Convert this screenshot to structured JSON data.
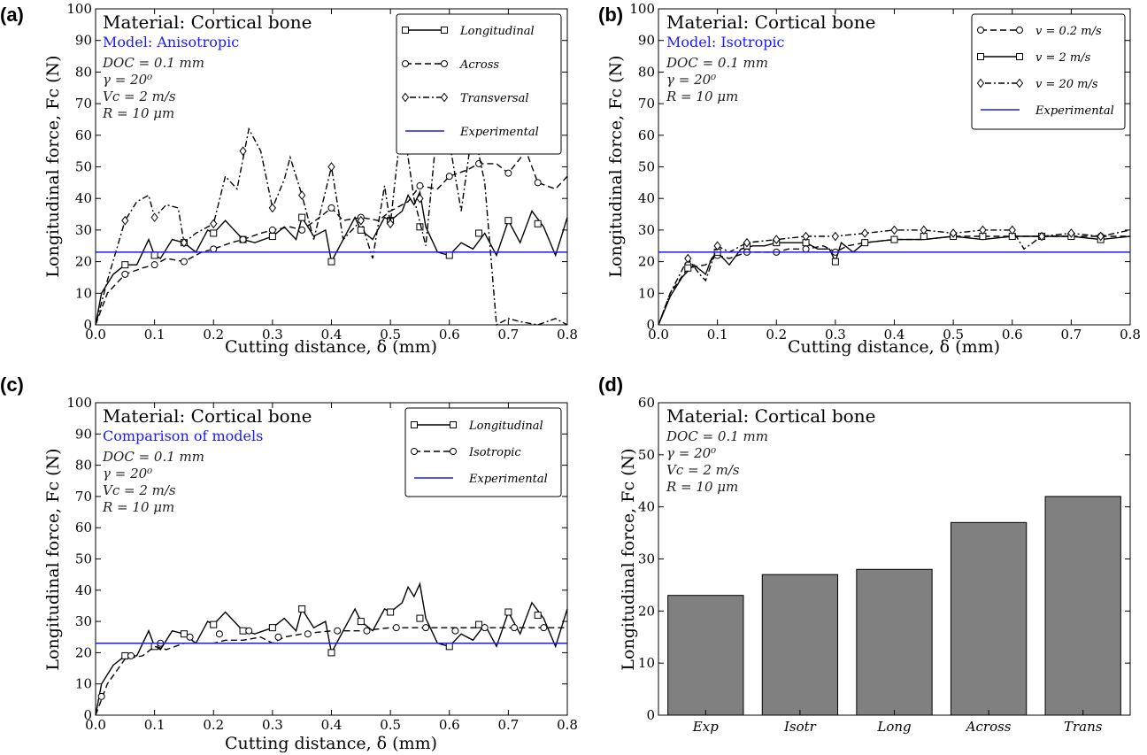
{
  "figure": {
    "panels": [
      {
        "label": "(a)",
        "heading": "Material: Cortical bone",
        "model": "Model: Anisotropic",
        "params": [
          "DOC = 0.1 mm",
          "γ = 20⁰",
          "Vc = 2 m/s",
          "R = 10 μm"
        ]
      },
      {
        "label": "(b)",
        "heading": "Material: Cortical bone",
        "model": "Model: Isotropic",
        "params": [
          "DOC = 0.1 mm",
          "γ = 20⁰",
          "R = 10 μm"
        ]
      },
      {
        "label": "(c)",
        "heading": "Material: Cortical bone",
        "model": "Comparison of models",
        "params": [
          "DOC = 0.1 mm",
          "γ = 20⁰",
          "Vc = 2 m/s",
          "R = 10 μm"
        ]
      },
      {
        "label": "(d)",
        "heading": "Material: Cortical bone",
        "model": "",
        "params": [
          "DOC = 0.1 mm",
          "γ = 20⁰",
          "Vc = 2 m/s",
          "R = 10 μm"
        ]
      }
    ]
  },
  "chart_data": [
    {
      "type": "line",
      "xlabel": "Cutting distance, δ (mm)",
      "ylabel": "Longitudinal force, Fc (N)",
      "xlim": [
        0,
        0.8
      ],
      "ylim": [
        0,
        100
      ],
      "xticks": [
        "0.0",
        "0.1",
        "0.2",
        "0.3",
        "0.4",
        "0.5",
        "0.6",
        "0.7",
        "0.8"
      ],
      "yticks": [
        "0",
        "10",
        "20",
        "30",
        "40",
        "50",
        "60",
        "70",
        "80",
        "90",
        "100"
      ],
      "legend_position": "top-right",
      "series": [
        {
          "name": "Longitudinal",
          "style": "solid",
          "marker": "square",
          "x": [
            0,
            0.01,
            0.03,
            0.05,
            0.07,
            0.09,
            0.1,
            0.11,
            0.13,
            0.15,
            0.17,
            0.19,
            0.2,
            0.22,
            0.25,
            0.27,
            0.3,
            0.32,
            0.34,
            0.35,
            0.37,
            0.39,
            0.4,
            0.42,
            0.44,
            0.45,
            0.47,
            0.49,
            0.5,
            0.52,
            0.53,
            0.54,
            0.55,
            0.56,
            0.58,
            0.6,
            0.62,
            0.64,
            0.66,
            0.68,
            0.7,
            0.72,
            0.74,
            0.76,
            0.78,
            0.8
          ],
          "y": [
            0,
            10,
            16,
            19,
            19,
            27,
            22,
            21,
            27,
            26,
            23,
            30,
            29,
            33,
            27,
            26,
            28,
            31,
            27,
            34,
            28,
            30,
            20,
            27,
            34,
            30,
            27,
            34,
            33,
            36,
            41,
            38,
            42,
            31,
            23,
            22,
            26,
            24,
            29,
            22,
            33,
            26,
            36,
            31,
            22,
            34
          ],
          "markers_x": [
            0.05,
            0.1,
            0.15,
            0.2,
            0.25,
            0.3,
            0.35,
            0.4,
            0.45,
            0.5,
            0.55,
            0.6,
            0.65,
            0.7,
            0.75
          ],
          "markers_y": [
            19,
            22,
            26,
            29,
            27,
            28,
            34,
            20,
            30,
            33,
            31,
            22,
            29,
            33,
            32
          ]
        },
        {
          "name": "Across",
          "style": "dashed",
          "marker": "circle",
          "x": [
            0,
            0.02,
            0.05,
            0.08,
            0.1,
            0.12,
            0.15,
            0.18,
            0.2,
            0.23,
            0.25,
            0.28,
            0.3,
            0.33,
            0.35,
            0.38,
            0.4,
            0.42,
            0.45,
            0.48,
            0.5,
            0.53,
            0.55,
            0.58,
            0.6,
            0.63,
            0.65,
            0.68,
            0.7,
            0.73,
            0.75,
            0.78,
            0.8
          ],
          "y": [
            0,
            10,
            16,
            18,
            19,
            21,
            20,
            23,
            24,
            26,
            27,
            29,
            30,
            31,
            30,
            34,
            37,
            33,
            34,
            33,
            36,
            39,
            44,
            43,
            47,
            49,
            51,
            51,
            48,
            55,
            45,
            43,
            47
          ],
          "markers_x": [
            0.05,
            0.1,
            0.15,
            0.2,
            0.25,
            0.3,
            0.35,
            0.4,
            0.45,
            0.5,
            0.55,
            0.6,
            0.65,
            0.7,
            0.75
          ],
          "markers_y": [
            16,
            19,
            20,
            24,
            27,
            30,
            30,
            37,
            34,
            33,
            44,
            47,
            51,
            48,
            45
          ]
        },
        {
          "name": "Transversal",
          "style": "dashdot",
          "marker": "diamond",
          "x": [
            0,
            0.02,
            0.05,
            0.07,
            0.09,
            0.1,
            0.12,
            0.14,
            0.15,
            0.17,
            0.2,
            0.22,
            0.24,
            0.26,
            0.28,
            0.3,
            0.32,
            0.33,
            0.35,
            0.37,
            0.4,
            0.42,
            0.45,
            0.47,
            0.49,
            0.5,
            0.52,
            0.54,
            0.56,
            0.58,
            0.6,
            0.62,
            0.64,
            0.66,
            0.68,
            0.7,
            0.72,
            0.75,
            0.78,
            0.8
          ],
          "y": [
            0,
            14,
            33,
            39,
            41,
            34,
            38,
            37,
            26,
            29,
            32,
            47,
            43,
            62,
            55,
            37,
            46,
            53,
            41,
            27,
            50,
            27,
            33,
            21,
            44,
            32,
            66,
            40,
            25,
            64,
            58,
            36,
            63,
            45,
            0,
            2,
            1,
            0,
            2,
            0
          ],
          "markers_x": [
            0.05,
            0.1,
            0.15,
            0.2,
            0.25,
            0.3,
            0.35,
            0.4,
            0.45,
            0.5,
            0.55,
            0.6
          ],
          "markers_y": [
            33,
            34,
            26,
            32,
            55,
            37,
            41,
            50,
            33,
            32,
            40,
            58
          ]
        },
        {
          "name": "Experimental",
          "style": "solid",
          "marker": "none",
          "color": "#1a1aff",
          "x": [
            0,
            0.8
          ],
          "y": [
            23,
            23
          ]
        }
      ]
    },
    {
      "type": "line",
      "xlabel": "Cutting distance, δ (mm)",
      "ylabel": "Longitudinal force, Fc (N)",
      "xlim": [
        0,
        0.8
      ],
      "ylim": [
        0,
        100
      ],
      "xticks": [
        "0.0",
        "0.1",
        "0.2",
        "0.3",
        "0.4",
        "0.5",
        "0.6",
        "0.7",
        "0.8"
      ],
      "yticks": [
        "0",
        "10",
        "20",
        "30",
        "40",
        "50",
        "60",
        "70",
        "80",
        "90",
        "100"
      ],
      "legend_position": "top-right",
      "series": [
        {
          "name": "v = 0.2 m/s",
          "style": "dashed",
          "marker": "circle",
          "x": [
            0,
            0.02,
            0.05,
            0.08,
            0.1,
            0.12,
            0.15,
            0.18,
            0.2,
            0.22,
            0.25,
            0.28,
            0.3,
            0.32,
            0.35,
            0.4,
            0.45,
            0.5,
            0.55,
            0.6,
            0.65,
            0.7,
            0.75,
            0.8
          ],
          "y": [
            0,
            10,
            18,
            19,
            22,
            21,
            23,
            23,
            23,
            24,
            24,
            25,
            23,
            25,
            26,
            27,
            27,
            28,
            28,
            28,
            28,
            28,
            28,
            28
          ],
          "markers_x": [
            0.05,
            0.1,
            0.15,
            0.2,
            0.25,
            0.3,
            0.35,
            0.4,
            0.45,
            0.5,
            0.55,
            0.6,
            0.65,
            0.7,
            0.75
          ],
          "markers_y": [
            19,
            22,
            23,
            23,
            24,
            23,
            26,
            27,
            28,
            28,
            28,
            28,
            28,
            28,
            28
          ]
        },
        {
          "name": "v = 2 m/s",
          "style": "solid",
          "marker": "square",
          "x": [
            0,
            0.02,
            0.04,
            0.06,
            0.08,
            0.09,
            0.1,
            0.12,
            0.14,
            0.16,
            0.18,
            0.2,
            0.22,
            0.25,
            0.27,
            0.29,
            0.3,
            0.31,
            0.33,
            0.35,
            0.4,
            0.45,
            0.5,
            0.55,
            0.6,
            0.65,
            0.7,
            0.75,
            0.8
          ],
          "y": [
            0,
            9,
            15,
            19,
            16,
            21,
            23,
            19,
            24,
            25,
            25,
            26,
            26,
            26,
            24,
            24,
            20,
            26,
            23,
            26,
            27,
            27,
            28,
            27,
            28,
            28,
            28,
            27,
            28
          ],
          "markers_x": [
            0.05,
            0.1,
            0.15,
            0.2,
            0.25,
            0.3,
            0.35,
            0.4,
            0.45,
            0.5,
            0.55,
            0.6,
            0.65,
            0.7,
            0.75
          ],
          "markers_y": [
            18,
            23,
            25,
            26,
            26,
            20,
            26,
            27,
            28,
            28,
            28,
            28,
            28,
            28,
            27
          ]
        },
        {
          "name": "v = 20 m/s",
          "style": "dashdot",
          "marker": "diamond",
          "x": [
            0,
            0.02,
            0.05,
            0.07,
            0.08,
            0.1,
            0.12,
            0.15,
            0.2,
            0.25,
            0.3,
            0.35,
            0.4,
            0.45,
            0.5,
            0.55,
            0.6,
            0.62,
            0.65,
            0.7,
            0.75,
            0.8
          ],
          "y": [
            0,
            10,
            21,
            16,
            14,
            25,
            23,
            26,
            27,
            28,
            28,
            29,
            30,
            30,
            29,
            30,
            30,
            24,
            28,
            29,
            28,
            30
          ],
          "markers_x": [
            0.05,
            0.1,
            0.15,
            0.2,
            0.25,
            0.3,
            0.35,
            0.4,
            0.45,
            0.5,
            0.55,
            0.6,
            0.65,
            0.7,
            0.75
          ],
          "markers_y": [
            21,
            25,
            26,
            27,
            28,
            28,
            29,
            30,
            30,
            29,
            30,
            30,
            28,
            29,
            28
          ]
        },
        {
          "name": "Experimental",
          "style": "solid",
          "marker": "none",
          "color": "#1a1aff",
          "x": [
            0,
            0.8
          ],
          "y": [
            23,
            23
          ]
        }
      ]
    },
    {
      "type": "line",
      "xlabel": "Cutting distance, δ (mm)",
      "ylabel": "Longitudinal force, Fc (N)",
      "xlim": [
        0,
        0.8
      ],
      "ylim": [
        0,
        100
      ],
      "xticks": [
        "0.0",
        "0.1",
        "0.2",
        "0.3",
        "0.4",
        "0.5",
        "0.6",
        "0.7",
        "0.8"
      ],
      "yticks": [
        "0",
        "10",
        "20",
        "30",
        "40",
        "50",
        "60",
        "70",
        "80",
        "90",
        "100"
      ],
      "legend_position": "top-right",
      "series": [
        {
          "name": "Longitudinal",
          "style": "solid",
          "marker": "square",
          "x": [
            0,
            0.01,
            0.03,
            0.05,
            0.07,
            0.09,
            0.1,
            0.11,
            0.13,
            0.15,
            0.17,
            0.19,
            0.2,
            0.22,
            0.25,
            0.27,
            0.3,
            0.32,
            0.34,
            0.35,
            0.37,
            0.39,
            0.4,
            0.42,
            0.44,
            0.45,
            0.47,
            0.49,
            0.5,
            0.52,
            0.53,
            0.54,
            0.55,
            0.56,
            0.58,
            0.6,
            0.62,
            0.64,
            0.66,
            0.68,
            0.7,
            0.72,
            0.74,
            0.76,
            0.78,
            0.8
          ],
          "y": [
            0,
            10,
            16,
            19,
            19,
            27,
            22,
            21,
            27,
            26,
            23,
            30,
            29,
            33,
            27,
            26,
            28,
            31,
            27,
            34,
            28,
            30,
            20,
            27,
            34,
            30,
            27,
            34,
            33,
            36,
            41,
            38,
            42,
            31,
            23,
            22,
            26,
            24,
            29,
            22,
            33,
            26,
            36,
            31,
            22,
            34
          ],
          "markers_x": [
            0.05,
            0.1,
            0.15,
            0.2,
            0.25,
            0.3,
            0.35,
            0.4,
            0.45,
            0.5,
            0.55,
            0.6,
            0.65,
            0.7,
            0.75
          ],
          "markers_y": [
            19,
            22,
            26,
            29,
            27,
            28,
            34,
            20,
            30,
            33,
            31,
            22,
            29,
            33,
            32
          ]
        },
        {
          "name": "Isotropic",
          "style": "dashed",
          "marker": "circle",
          "x": [
            0,
            0.02,
            0.05,
            0.08,
            0.1,
            0.12,
            0.15,
            0.18,
            0.2,
            0.22,
            0.25,
            0.28,
            0.3,
            0.32,
            0.35,
            0.4,
            0.45,
            0.5,
            0.55,
            0.6,
            0.65,
            0.7,
            0.75,
            0.8
          ],
          "y": [
            0,
            10,
            18,
            19,
            22,
            21,
            23,
            23,
            23,
            24,
            24,
            25,
            23,
            25,
            26,
            27,
            27,
            28,
            28,
            28,
            28,
            28,
            28,
            28
          ],
          "markers_x": [
            0.01,
            0.06,
            0.11,
            0.16,
            0.21,
            0.26,
            0.31,
            0.36,
            0.41,
            0.46,
            0.51,
            0.56,
            0.61,
            0.66,
            0.71,
            0.76
          ],
          "markers_y": [
            6,
            19,
            23,
            25,
            26,
            27,
            25,
            26,
            27,
            27,
            28,
            28,
            27,
            28,
            28,
            28
          ]
        },
        {
          "name": "Experimental",
          "style": "solid",
          "marker": "none",
          "color": "#1a1aff",
          "x": [
            0,
            0.8
          ],
          "y": [
            23,
            23
          ]
        }
      ]
    },
    {
      "type": "bar",
      "ylabel": "Longitudinal force, Fc (N)",
      "ylim": [
        0,
        60
      ],
      "yticks": [
        "0",
        "10",
        "20",
        "30",
        "40",
        "50",
        "60"
      ],
      "categories": [
        "Exp",
        "Isotr",
        "Long",
        "Across",
        "Trans"
      ],
      "values": [
        23,
        27,
        28,
        37,
        42
      ],
      "bar_color": "#808080"
    }
  ]
}
